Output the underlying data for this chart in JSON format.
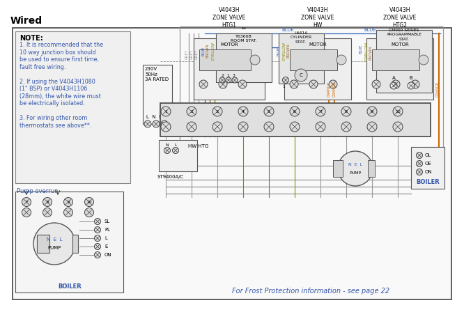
{
  "title": "Wired",
  "bg_color": "#ffffff",
  "border_color": "#444444",
  "note_text": "NOTE:",
  "note_lines": [
    "1. It is recommended that the",
    "10 way junction box should",
    "be used to ensure first time,",
    "fault free wiring.",
    "",
    "2. If using the V4043H1080",
    "(1\" BSP) or V4043H1106",
    "(28mm), the white wire must",
    "be electrically isolated.",
    "",
    "3. For wiring other room",
    "thermostats see above**."
  ],
  "zone_valve_labels": [
    "V4043H\nZONE VALVE\nHTG1",
    "V4043H\nZONE VALVE\nHW",
    "V4043H\nZONE VALVE\nHTG2"
  ],
  "wire_colors": {
    "grey": "#999999",
    "blue": "#3366bb",
    "brown": "#996633",
    "gyellow": "#888800",
    "orange": "#cc6600",
    "black": "#333333"
  },
  "frost_text": "For Frost Protection information - see page 22",
  "pump_overrun_label": "Pump overrun",
  "st9400_label": "ST9400A/C",
  "hw_htg_label": "HW HTG",
  "boiler_label": "BOILER",
  "pump_label": "PUMP",
  "cm900_label": "CM900 SERIES\nPROGRAMMABLE\nSTAT.",
  "t6360b_label": "T6360B\nROOM STAT.",
  "l641a_label": "L641A\nCYLINDER\nSTAT.",
  "supply_label": "230V\n50Hz\n3A RATED",
  "lne_label": "L  N  E",
  "junction_numbers": [
    "1",
    "2",
    "3",
    "4",
    "5",
    "6",
    "7",
    "8",
    "9",
    "10"
  ],
  "motor_label": "MOTOR"
}
